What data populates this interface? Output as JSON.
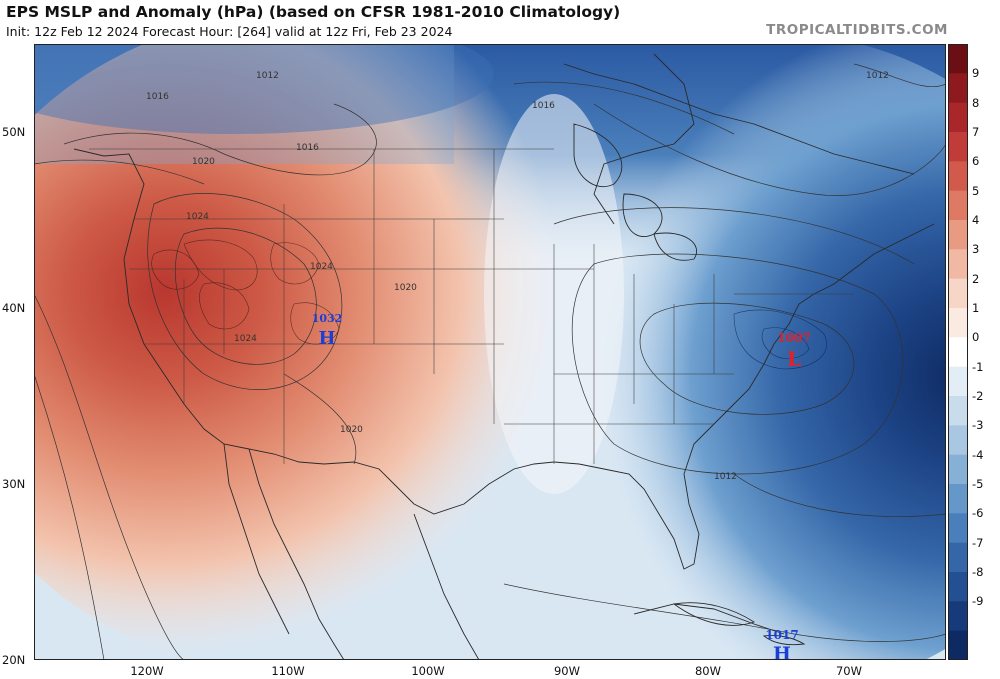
{
  "header": {
    "title": "EPS MSLP and Anomaly (hPa) (based on CFSR 1981-2010 Climatology)",
    "subtitle": "Init: 12z Feb 12 2024   Forecast Hour: [264]   valid at 12z Fri, Feb 23 2024",
    "credit": "TROPICALTIDBITS.COM"
  },
  "axes": {
    "lat_labels": [
      "50N",
      "40N",
      "30N",
      "20N"
    ],
    "lon_labels": [
      "120W",
      "110W",
      "100W",
      "90W",
      "80W",
      "70W"
    ]
  },
  "colorbar": {
    "ticks": [
      "9",
      "8",
      "7",
      "6",
      "5",
      "4",
      "3",
      "2",
      "1",
      "0",
      "-1",
      "-2",
      "-3",
      "-4",
      "-5",
      "-6",
      "-7",
      "-8",
      "-9"
    ],
    "colors": [
      "#6b0f14",
      "#8e1a1f",
      "#a9262a",
      "#c13b38",
      "#d25a4c",
      "#de7a64",
      "#e89a82",
      "#f1b9a3",
      "#f7d6c8",
      "#fbeae2",
      "#ffffff",
      "#e3edf5",
      "#c9dcec",
      "#a9c7e2",
      "#87b0d6",
      "#6597c9",
      "#4a7fbb",
      "#3466a8",
      "#234f93",
      "#163a7a",
      "#0e2a62"
    ]
  },
  "pressure_centers": [
    {
      "name": "high-rockies",
      "letter": "H",
      "value": "1032",
      "color": "#1b3fd6"
    },
    {
      "name": "low-atlantic",
      "letter": "L",
      "value": "1007",
      "color": "#e0202a"
    },
    {
      "name": "high-caribbean",
      "letter": "H",
      "value": "1017",
      "color": "#1b3fd6"
    }
  ],
  "isobar_labels": [
    "1012",
    "1016",
    "1016",
    "1020",
    "1024",
    "1024",
    "1024",
    "1020",
    "1020",
    "1016",
    "1012",
    "1012"
  ]
}
